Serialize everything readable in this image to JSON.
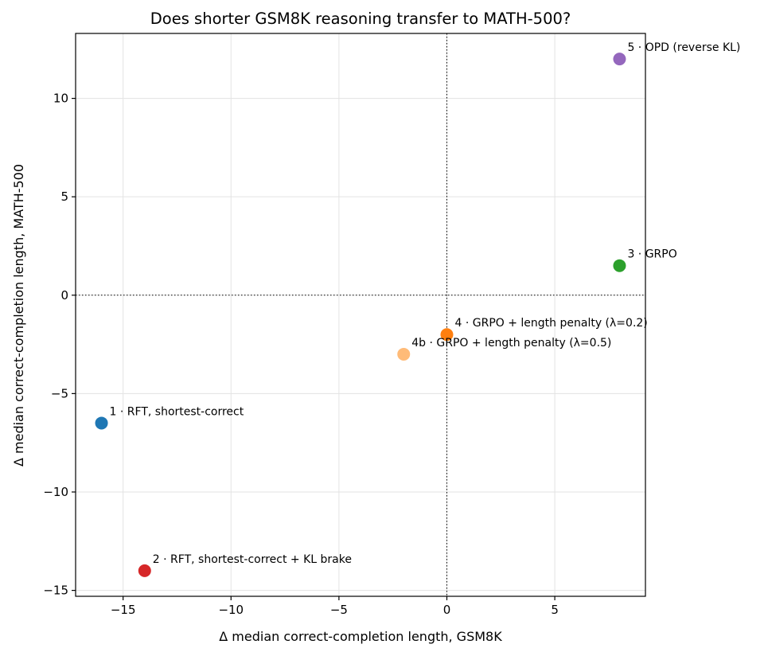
{
  "chart_data": {
    "type": "scatter",
    "title": "Does shorter GSM8K reasoning transfer to MATH-500?",
    "xlabel": "Δ median correct-completion length, GSM8K",
    "ylabel": "Δ median correct-completion length, MATH-500",
    "xlim": [
      -17.2,
      9.2
    ],
    "ylim": [
      -15.3,
      13.3
    ],
    "xticks": [
      -15,
      -10,
      -5,
      0,
      5
    ],
    "yticks": [
      -15,
      -10,
      -5,
      0,
      5,
      10
    ],
    "xtick_labels": [
      "−15",
      "−10",
      "−5",
      "0",
      "5"
    ],
    "ytick_labels": [
      "−15",
      "−10",
      "−5",
      "0",
      "5",
      "10"
    ],
    "grid": true,
    "reference_lines": {
      "x": 0,
      "y": 0
    },
    "points": [
      {
        "label": "1 · RFT, shortest-correct",
        "x": -16,
        "y": -6.5,
        "color": "#1f77b4"
      },
      {
        "label": "2 · RFT, shortest-correct + KL brake",
        "x": -14,
        "y": -14,
        "color": "#d62728"
      },
      {
        "label": "3 · GRPO",
        "x": 8,
        "y": 1.5,
        "color": "#2ca02c"
      },
      {
        "label": "4 · GRPO + length penalty (λ=0.2)",
        "x": 0,
        "y": -2,
        "color": "#ff7f0e"
      },
      {
        "label": "4b · GRPO + length penalty (λ=0.5)",
        "x": -2,
        "y": -3,
        "color": "#ffbb78"
      },
      {
        "label": "5 · OPD (reverse KL)",
        "x": 8,
        "y": 12,
        "color": "#9467bd"
      }
    ]
  }
}
